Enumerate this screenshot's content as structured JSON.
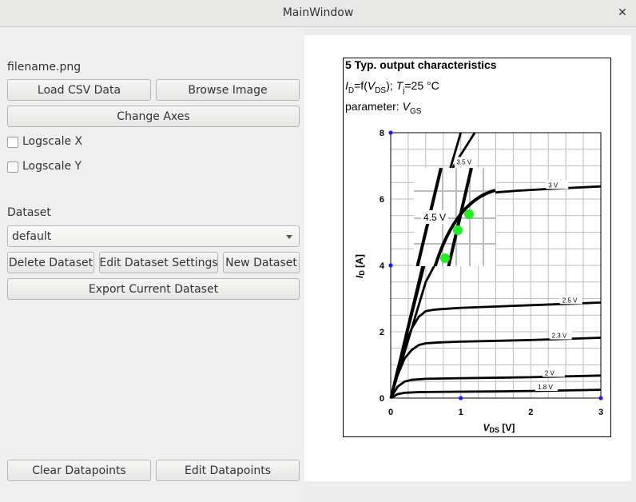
{
  "window": {
    "title": "MainWindow",
    "close_glyph": "✕"
  },
  "panel": {
    "filename": "filename.png",
    "load_csv": "Load CSV Data",
    "browse_image": "Browse Image",
    "change_axes": "Change Axes",
    "logscale_x": "Logscale X",
    "logscale_y": "Logscale Y",
    "logscale_x_checked": false,
    "logscale_y_checked": false,
    "dataset_label": "Dataset",
    "dataset_selected": "default",
    "delete_dataset": "Delete Dataset",
    "edit_dataset_settings": "Edit Dataset Settings",
    "new_dataset": "New Dataset",
    "export_dataset": "Export Current Dataset",
    "clear_datapoints": "Clear Datapoints",
    "edit_datapoints": "Edit Datapoints"
  },
  "figure": {
    "heading": "5 Typ. output characteristics",
    "formula_I": "I",
    "formula_D": "D",
    "formula_mid": "=f(",
    "formula_V": "V",
    "formula_DS": "DS",
    "formula_close": "); ",
    "formula_T": "T",
    "formula_j": "j",
    "formula_temp": "=25 °C",
    "param_label": "parameter: ",
    "param_V": "V",
    "param_GS": "GS",
    "ylabel_I": "I",
    "ylabel_D": "D",
    "ylabel_unit": " [A]",
    "xlabel_V": "V",
    "xlabel_DS": "DS",
    "xlabel_unit": " [V]",
    "zoom_label": "4.5 V"
  },
  "chart_data": {
    "type": "line",
    "xlim": [
      0,
      3
    ],
    "ylim": [
      0,
      8
    ],
    "x_ticks": [
      0,
      1,
      2,
      3
    ],
    "y_ticks": [
      0,
      2,
      4,
      6,
      8
    ],
    "grid": true,
    "series": [
      {
        "name": "1.8 V",
        "x": [
          0,
          0.1,
          0.2,
          0.4,
          0.8,
          1.5,
          2.2,
          3.0
        ],
        "y": [
          0,
          0.12,
          0.16,
          0.18,
          0.19,
          0.2,
          0.22,
          0.25
        ]
      },
      {
        "name": "2 V",
        "x": [
          0,
          0.1,
          0.2,
          0.3,
          0.5,
          1.0,
          2.0,
          3.0
        ],
        "y": [
          0,
          0.35,
          0.5,
          0.55,
          0.58,
          0.6,
          0.63,
          0.68
        ]
      },
      {
        "name": "2.3 V",
        "x": [
          0,
          0.1,
          0.2,
          0.3,
          0.4,
          0.5,
          0.7,
          1.0,
          2.0,
          3.0
        ],
        "y": [
          0,
          0.7,
          1.2,
          1.45,
          1.6,
          1.65,
          1.68,
          1.7,
          1.75,
          1.82
        ]
      },
      {
        "name": "2.5 V",
        "x": [
          0,
          0.1,
          0.2,
          0.3,
          0.4,
          0.5,
          0.6,
          0.7,
          1.0,
          2.0,
          3.0
        ],
        "y": [
          0,
          0.9,
          1.6,
          2.1,
          2.45,
          2.62,
          2.66,
          2.68,
          2.72,
          2.8,
          2.88
        ]
      },
      {
        "name": "3 V",
        "x": [
          0,
          0.5,
          1.0,
          1.3,
          1.5,
          1.8,
          2.2,
          3.0
        ],
        "y": [
          0,
          3.5,
          5.5,
          6.05,
          6.2,
          6.25,
          6.3,
          6.38
        ]
      },
      {
        "name": "3.5 V",
        "x": [
          0,
          0.3,
          0.6,
          0.9,
          1.2
        ],
        "y": [
          0,
          2.5,
          5.0,
          7.0,
          8.0
        ]
      },
      {
        "name": "4.5 V",
        "x": [
          0,
          0.5,
          1.0
        ],
        "y": [
          0,
          4.4,
          8.0
        ]
      }
    ],
    "calibration_points": [
      {
        "x": 0,
        "y": 8
      },
      {
        "x": 0,
        "y": 4
      },
      {
        "x": 1,
        "y": 0
      },
      {
        "x": 3,
        "y": 0
      }
    ],
    "datapoints": [
      {
        "x": 0.8,
        "y": 4.2
      },
      {
        "x": 0.96,
        "y": 5.05
      },
      {
        "x": 1.12,
        "y": 5.55
      }
    ]
  },
  "colors": {
    "datapoint": "#22ee22",
    "calibration": "#1a1aee",
    "curve": "#000000",
    "grid": "#bdbdbd"
  }
}
